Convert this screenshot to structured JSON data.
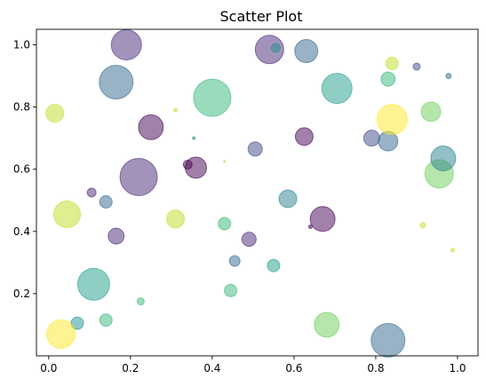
{
  "chart_data": {
    "type": "scatter",
    "title": "Scatter Plot",
    "xlabel": "",
    "ylabel": "",
    "xlim": [
      -0.03,
      1.05
    ],
    "ylim": [
      0.0,
      1.05
    ],
    "x_ticks": [
      0.0,
      0.2,
      0.4,
      0.6,
      0.8,
      1.0
    ],
    "y_ticks": [
      0.2,
      0.4,
      0.6,
      0.8,
      1.0
    ],
    "x_tick_labels": [
      "0.0",
      "0.2",
      "0.4",
      "0.6",
      "0.8",
      "1.0"
    ],
    "y_tick_labels": [
      "0.2",
      "0.4",
      "0.6",
      "0.8",
      "1.0"
    ],
    "grid": false,
    "legend": "none",
    "colormap": "viridis",
    "alpha": 0.5,
    "points": [
      {
        "x": 0.19,
        "y": 1.0,
        "size": 17,
        "color": "#482878"
      },
      {
        "x": 0.165,
        "y": 0.88,
        "size": 19,
        "color": "#31688e"
      },
      {
        "x": 0.25,
        "y": 0.735,
        "size": 14,
        "color": "#440154"
      },
      {
        "x": 0.22,
        "y": 0.575,
        "size": 21,
        "color": "#482878"
      },
      {
        "x": 0.36,
        "y": 0.605,
        "size": 12,
        "color": "#440154"
      },
      {
        "x": 0.34,
        "y": 0.615,
        "size": 5,
        "color": "#440154"
      },
      {
        "x": 0.015,
        "y": 0.78,
        "size": 10,
        "color": "#bddf26"
      },
      {
        "x": 0.045,
        "y": 0.455,
        "size": 15,
        "color": "#bddf26"
      },
      {
        "x": 0.105,
        "y": 0.525,
        "size": 5,
        "color": "#482878"
      },
      {
        "x": 0.14,
        "y": 0.495,
        "size": 7,
        "color": "#31688e"
      },
      {
        "x": 0.165,
        "y": 0.385,
        "size": 9,
        "color": "#482878"
      },
      {
        "x": 0.11,
        "y": 0.23,
        "size": 18,
        "color": "#1f9e89"
      },
      {
        "x": 0.07,
        "y": 0.105,
        "size": 7,
        "color": "#21918c"
      },
      {
        "x": 0.03,
        "y": 0.07,
        "size": 16,
        "color": "#fde725"
      },
      {
        "x": 0.14,
        "y": 0.115,
        "size": 7,
        "color": "#35b779"
      },
      {
        "x": 0.225,
        "y": 0.175,
        "size": 4,
        "color": "#35b779"
      },
      {
        "x": 0.31,
        "y": 0.79,
        "size": 2,
        "color": "#bddf26"
      },
      {
        "x": 0.355,
        "y": 0.7,
        "size": 1.5,
        "color": "#21918c"
      },
      {
        "x": 0.43,
        "y": 0.625,
        "size": 1,
        "color": "#bddf26"
      },
      {
        "x": 0.4,
        "y": 0.83,
        "size": 21,
        "color": "#35b779"
      },
      {
        "x": 0.31,
        "y": 0.44,
        "size": 10,
        "color": "#bddf26"
      },
      {
        "x": 0.43,
        "y": 0.425,
        "size": 7,
        "color": "#35b779"
      },
      {
        "x": 0.49,
        "y": 0.375,
        "size": 8,
        "color": "#482878"
      },
      {
        "x": 0.455,
        "y": 0.305,
        "size": 6,
        "color": "#31688e"
      },
      {
        "x": 0.445,
        "y": 0.21,
        "size": 7,
        "color": "#35b779"
      },
      {
        "x": 0.505,
        "y": 0.665,
        "size": 8,
        "color": "#3e4989"
      },
      {
        "x": 0.55,
        "y": 0.29,
        "size": 7,
        "color": "#1f9e89"
      },
      {
        "x": 0.585,
        "y": 0.505,
        "size": 10,
        "color": "#26828e"
      },
      {
        "x": 0.54,
        "y": 0.985,
        "size": 16,
        "color": "#482878"
      },
      {
        "x": 0.555,
        "y": 0.99,
        "size": 5,
        "color": "#21918c"
      },
      {
        "x": 0.63,
        "y": 0.98,
        "size": 13,
        "color": "#31688e"
      },
      {
        "x": 0.625,
        "y": 0.705,
        "size": 10,
        "color": "#440154"
      },
      {
        "x": 0.67,
        "y": 0.44,
        "size": 14,
        "color": "#440154"
      },
      {
        "x": 0.64,
        "y": 0.415,
        "size": 2,
        "color": "#440154"
      },
      {
        "x": 0.705,
        "y": 0.86,
        "size": 17,
        "color": "#1f9e89"
      },
      {
        "x": 0.68,
        "y": 0.1,
        "size": 14,
        "color": "#6ece58"
      },
      {
        "x": 0.79,
        "y": 0.7,
        "size": 9,
        "color": "#3e4989"
      },
      {
        "x": 0.83,
        "y": 0.69,
        "size": 11,
        "color": "#31688e"
      },
      {
        "x": 0.84,
        "y": 0.76,
        "size": 17,
        "color": "#fde725"
      },
      {
        "x": 0.84,
        "y": 0.94,
        "size": 7,
        "color": "#bddf26"
      },
      {
        "x": 0.83,
        "y": 0.89,
        "size": 8,
        "color": "#35b779"
      },
      {
        "x": 0.83,
        "y": 0.05,
        "size": 19,
        "color": "#31688e"
      },
      {
        "x": 0.9,
        "y": 0.93,
        "size": 4,
        "color": "#3e4989"
      },
      {
        "x": 0.935,
        "y": 0.785,
        "size": 11,
        "color": "#6ece58"
      },
      {
        "x": 0.955,
        "y": 0.585,
        "size": 16,
        "color": "#6ece58"
      },
      {
        "x": 0.965,
        "y": 0.635,
        "size": 14,
        "color": "#26828e"
      },
      {
        "x": 0.915,
        "y": 0.42,
        "size": 3,
        "color": "#bddf26"
      },
      {
        "x": 0.978,
        "y": 0.9,
        "size": 3,
        "color": "#31688e"
      },
      {
        "x": 0.988,
        "y": 0.34,
        "size": 2,
        "color": "#bddf26"
      }
    ]
  }
}
